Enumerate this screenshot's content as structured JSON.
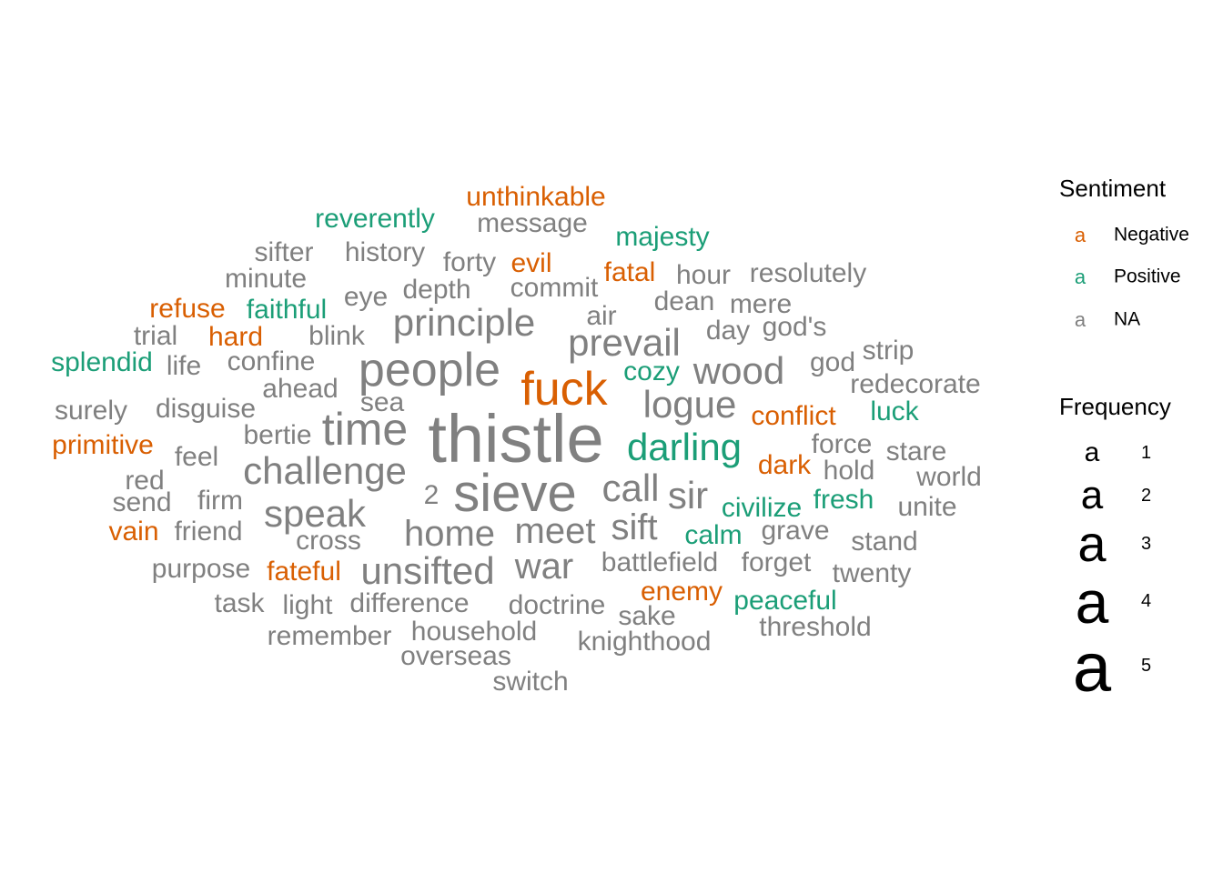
{
  "chart_data": {
    "type": "wordcloud",
    "sentiment_colors": {
      "Negative": "#D95F02",
      "Positive": "#1B9E77",
      "NA": "#808080"
    },
    "legend": {
      "sentiment_title": "Sentiment",
      "key_glyph": "a",
      "sentiment_entries": [
        "Negative",
        "Positive",
        "NA"
      ],
      "frequency_title": "Frequency",
      "frequency_entries": [
        1,
        2,
        3,
        4,
        5
      ],
      "legend_placement": "right"
    },
    "words": [
      {
        "text": "thistle",
        "freq": 5,
        "sentiment": "NA"
      },
      {
        "text": "sieve",
        "freq": 4,
        "sentiment": "NA"
      },
      {
        "text": "people",
        "freq": 4,
        "sentiment": "NA"
      },
      {
        "text": "fuck",
        "freq": 4,
        "sentiment": "Negative"
      },
      {
        "text": "time",
        "freq": 4,
        "sentiment": "NA"
      },
      {
        "text": "principle",
        "freq": 3,
        "sentiment": "NA"
      },
      {
        "text": "prevail",
        "freq": 3,
        "sentiment": "NA"
      },
      {
        "text": "wood",
        "freq": 3,
        "sentiment": "NA"
      },
      {
        "text": "logue",
        "freq": 3,
        "sentiment": "NA"
      },
      {
        "text": "darling",
        "freq": 3,
        "sentiment": "Positive"
      },
      {
        "text": "challenge",
        "freq": 3,
        "sentiment": "NA"
      },
      {
        "text": "call",
        "freq": 3,
        "sentiment": "NA"
      },
      {
        "text": "sir",
        "freq": 3,
        "sentiment": "NA"
      },
      {
        "text": "speak",
        "freq": 3,
        "sentiment": "NA"
      },
      {
        "text": "sift",
        "freq": 3,
        "sentiment": "NA"
      },
      {
        "text": "home",
        "freq": 3,
        "sentiment": "NA"
      },
      {
        "text": "meet",
        "freq": 3,
        "sentiment": "NA"
      },
      {
        "text": "unsifted",
        "freq": 3,
        "sentiment": "NA"
      },
      {
        "text": "war",
        "freq": 3,
        "sentiment": "NA"
      },
      {
        "text": "2",
        "freq": 2,
        "sentiment": "NA"
      },
      {
        "text": "unthinkable",
        "freq": 1,
        "sentiment": "Negative"
      },
      {
        "text": "reverently",
        "freq": 1,
        "sentiment": "Positive"
      },
      {
        "text": "message",
        "freq": 1,
        "sentiment": "NA"
      },
      {
        "text": "majesty",
        "freq": 1,
        "sentiment": "Positive"
      },
      {
        "text": "sifter",
        "freq": 1,
        "sentiment": "NA"
      },
      {
        "text": "history",
        "freq": 1,
        "sentiment": "NA"
      },
      {
        "text": "forty",
        "freq": 1,
        "sentiment": "NA"
      },
      {
        "text": "evil",
        "freq": 1,
        "sentiment": "Negative"
      },
      {
        "text": "fatal",
        "freq": 1,
        "sentiment": "Negative"
      },
      {
        "text": "hour",
        "freq": 1,
        "sentiment": "NA"
      },
      {
        "text": "resolutely",
        "freq": 1,
        "sentiment": "NA"
      },
      {
        "text": "minute",
        "freq": 1,
        "sentiment": "NA"
      },
      {
        "text": "depth",
        "freq": 1,
        "sentiment": "NA"
      },
      {
        "text": "commit",
        "freq": 1,
        "sentiment": "NA"
      },
      {
        "text": "eye",
        "freq": 1,
        "sentiment": "NA"
      },
      {
        "text": "dean",
        "freq": 1,
        "sentiment": "NA"
      },
      {
        "text": "mere",
        "freq": 1,
        "sentiment": "NA"
      },
      {
        "text": "refuse",
        "freq": 1,
        "sentiment": "Negative"
      },
      {
        "text": "faithful",
        "freq": 1,
        "sentiment": "Positive"
      },
      {
        "text": "air",
        "freq": 1,
        "sentiment": "NA"
      },
      {
        "text": "day",
        "freq": 1,
        "sentiment": "NA"
      },
      {
        "text": "god's",
        "freq": 1,
        "sentiment": "NA"
      },
      {
        "text": "trial",
        "freq": 1,
        "sentiment": "NA"
      },
      {
        "text": "hard",
        "freq": 1,
        "sentiment": "Negative"
      },
      {
        "text": "blink",
        "freq": 1,
        "sentiment": "NA"
      },
      {
        "text": "strip",
        "freq": 1,
        "sentiment": "NA"
      },
      {
        "text": "splendid",
        "freq": 1,
        "sentiment": "Positive"
      },
      {
        "text": "life",
        "freq": 1,
        "sentiment": "NA"
      },
      {
        "text": "confine",
        "freq": 1,
        "sentiment": "NA"
      },
      {
        "text": "cozy",
        "freq": 1,
        "sentiment": "Positive"
      },
      {
        "text": "god",
        "freq": 1,
        "sentiment": "NA"
      },
      {
        "text": "ahead",
        "freq": 1,
        "sentiment": "NA"
      },
      {
        "text": "redecorate",
        "freq": 1,
        "sentiment": "NA"
      },
      {
        "text": "sea",
        "freq": 1,
        "sentiment": "NA"
      },
      {
        "text": "surely",
        "freq": 1,
        "sentiment": "NA"
      },
      {
        "text": "disguise",
        "freq": 1,
        "sentiment": "NA"
      },
      {
        "text": "luck",
        "freq": 1,
        "sentiment": "Positive"
      },
      {
        "text": "conflict",
        "freq": 1,
        "sentiment": "Negative"
      },
      {
        "text": "bertie",
        "freq": 1,
        "sentiment": "NA"
      },
      {
        "text": "primitive",
        "freq": 1,
        "sentiment": "Negative"
      },
      {
        "text": "force",
        "freq": 1,
        "sentiment": "NA"
      },
      {
        "text": "stare",
        "freq": 1,
        "sentiment": "NA"
      },
      {
        "text": "feel",
        "freq": 1,
        "sentiment": "NA"
      },
      {
        "text": "dark",
        "freq": 1,
        "sentiment": "Negative"
      },
      {
        "text": "hold",
        "freq": 1,
        "sentiment": "NA"
      },
      {
        "text": "world",
        "freq": 1,
        "sentiment": "NA"
      },
      {
        "text": "red",
        "freq": 1,
        "sentiment": "NA"
      },
      {
        "text": "firm",
        "freq": 1,
        "sentiment": "NA"
      },
      {
        "text": "send",
        "freq": 1,
        "sentiment": "NA"
      },
      {
        "text": "civilize",
        "freq": 1,
        "sentiment": "Positive"
      },
      {
        "text": "fresh",
        "freq": 1,
        "sentiment": "Positive"
      },
      {
        "text": "unite",
        "freq": 1,
        "sentiment": "NA"
      },
      {
        "text": "vain",
        "freq": 1,
        "sentiment": "Negative"
      },
      {
        "text": "friend",
        "freq": 1,
        "sentiment": "NA"
      },
      {
        "text": "calm",
        "freq": 1,
        "sentiment": "Positive"
      },
      {
        "text": "grave",
        "freq": 1,
        "sentiment": "NA"
      },
      {
        "text": "cross",
        "freq": 1,
        "sentiment": "NA"
      },
      {
        "text": "stand",
        "freq": 1,
        "sentiment": "NA"
      },
      {
        "text": "purpose",
        "freq": 1,
        "sentiment": "NA"
      },
      {
        "text": "fateful",
        "freq": 1,
        "sentiment": "Negative"
      },
      {
        "text": "battlefield",
        "freq": 1,
        "sentiment": "NA"
      },
      {
        "text": "forget",
        "freq": 1,
        "sentiment": "NA"
      },
      {
        "text": "twenty",
        "freq": 1,
        "sentiment": "NA"
      },
      {
        "text": "enemy",
        "freq": 1,
        "sentiment": "Negative"
      },
      {
        "text": "task",
        "freq": 1,
        "sentiment": "NA"
      },
      {
        "text": "light",
        "freq": 1,
        "sentiment": "NA"
      },
      {
        "text": "difference",
        "freq": 1,
        "sentiment": "NA"
      },
      {
        "text": "doctrine",
        "freq": 1,
        "sentiment": "NA"
      },
      {
        "text": "peaceful",
        "freq": 1,
        "sentiment": "Positive"
      },
      {
        "text": "sake",
        "freq": 1,
        "sentiment": "NA"
      },
      {
        "text": "threshold",
        "freq": 1,
        "sentiment": "NA"
      },
      {
        "text": "remember",
        "freq": 1,
        "sentiment": "NA"
      },
      {
        "text": "household",
        "freq": 1,
        "sentiment": "NA"
      },
      {
        "text": "knighthood",
        "freq": 1,
        "sentiment": "NA"
      },
      {
        "text": "overseas",
        "freq": 1,
        "sentiment": "NA"
      },
      {
        "text": "switch",
        "freq": 1,
        "sentiment": "NA"
      }
    ]
  }
}
